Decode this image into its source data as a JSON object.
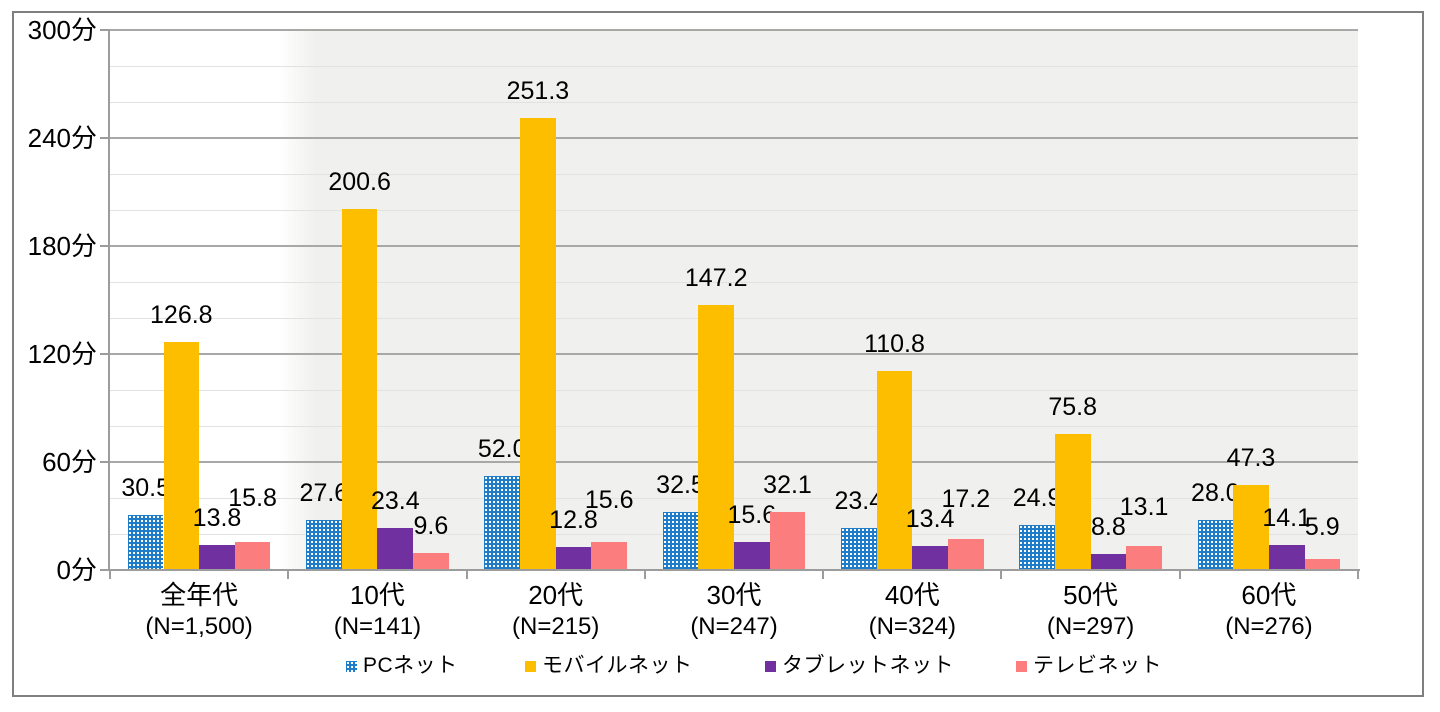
{
  "chart_data": {
    "type": "bar",
    "title": "",
    "unit": "分",
    "categories": [
      {
        "label": "全年代",
        "n_label": "(N=1,500)"
      },
      {
        "label": "10代",
        "n_label": "(N=141)"
      },
      {
        "label": "20代",
        "n_label": "(N=215)"
      },
      {
        "label": "30代",
        "n_label": "(N=247)"
      },
      {
        "label": "40代",
        "n_label": "(N=324)"
      },
      {
        "label": "50代",
        "n_label": "(N=297)"
      },
      {
        "label": "60代",
        "n_label": "(N=276)"
      }
    ],
    "series": [
      {
        "name": "PCネット",
        "color": "#1e7cc8",
        "pattern": "dots",
        "values": [
          30.5,
          27.6,
          52.0,
          32.5,
          23.4,
          24.9,
          28.0
        ]
      },
      {
        "name": "モバイルネット",
        "color": "#fdbe00",
        "pattern": "solid",
        "values": [
          126.8,
          200.6,
          251.3,
          147.2,
          110.8,
          75.8,
          47.3
        ]
      },
      {
        "name": "タブレットネット",
        "color": "#7030a0",
        "pattern": "solid",
        "values": [
          13.8,
          23.4,
          12.8,
          15.6,
          13.4,
          8.8,
          14.1
        ]
      },
      {
        "name": "テレビネット",
        "color": "#fc7d7e",
        "pattern": "solid",
        "values": [
          15.8,
          9.6,
          15.6,
          32.1,
          17.2,
          13.1,
          5.9
        ]
      }
    ],
    "y_axis": {
      "min": 0,
      "max": 300,
      "major_step": 60,
      "minor_step": 20,
      "tick_labels": [
        "0分",
        "60分",
        "120分",
        "180分",
        "240分",
        "300分"
      ]
    },
    "data_labels_decimals": 1,
    "legend_position": "bottom",
    "grid": true
  }
}
